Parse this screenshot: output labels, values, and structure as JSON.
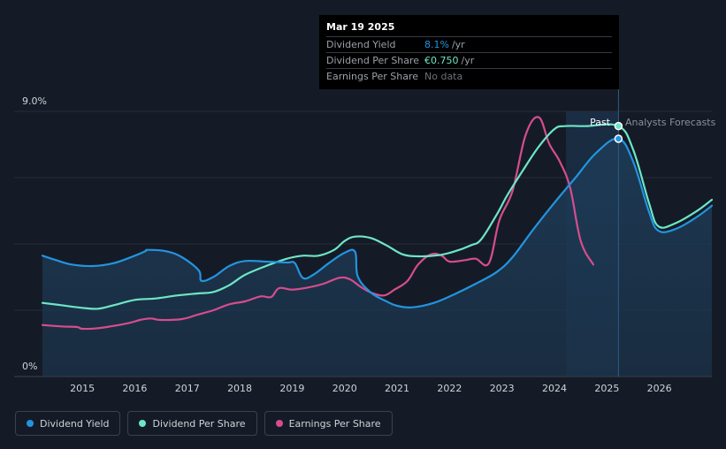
{
  "tooltip": {
    "date": "Mar 19 2025",
    "rows": [
      {
        "label": "Dividend Yield",
        "value": "8.1%",
        "unit": "/yr"
      },
      {
        "label": "Dividend Per Share",
        "value": "€0.750",
        "unit": "/yr"
      },
      {
        "label": "Earnings Per Share",
        "value": "No data",
        "unit": ""
      }
    ]
  },
  "legend": [
    {
      "label": "Dividend Yield",
      "color": "#2394df"
    },
    {
      "label": "Dividend Per Share",
      "color": "#6de6c6"
    },
    {
      "label": "Earnings Per Share",
      "color": "#d64d8e"
    }
  ],
  "colors": {
    "background": "#151b26",
    "grid": "#262c38",
    "forecast_band": "#1a2f47",
    "area_fill": "#1d3a55",
    "axis_text": "#cfd3d8",
    "muted_text": "#8a9099"
  },
  "chart_data": {
    "type": "line",
    "title": "",
    "y_axis_labels": [
      "9.0%",
      "0%"
    ],
    "ylim": [
      0,
      9.0
    ],
    "xlim": [
      2014.24,
      2027.0
    ],
    "x_ticks": [
      "2015",
      "2016",
      "2017",
      "2018",
      "2019",
      "2020",
      "2021",
      "2022",
      "2023",
      "2024",
      "2025",
      "2026"
    ],
    "x_tick_values": [
      2015,
      2016,
      2017,
      2018,
      2019,
      2020,
      2021,
      2022,
      2023,
      2024,
      2025,
      2026
    ],
    "past_label": "Past",
    "forecast_label": "Analysts Forecasts",
    "past_end_x": 2025.22,
    "forecast_band_start_x": 2024.22,
    "series": [
      {
        "name": "Dividend Yield",
        "color": "#2394df",
        "unit": "% yield",
        "filled": true,
        "points": [
          [
            2014.24,
            4.1
          ],
          [
            2014.5,
            3.95
          ],
          [
            2014.8,
            3.8
          ],
          [
            2015.2,
            3.75
          ],
          [
            2015.6,
            3.85
          ],
          [
            2016.0,
            4.1
          ],
          [
            2016.2,
            4.25
          ],
          [
            2016.25,
            4.3
          ],
          [
            2016.6,
            4.25
          ],
          [
            2016.9,
            4.05
          ],
          [
            2017.22,
            3.6
          ],
          [
            2017.27,
            3.25
          ],
          [
            2017.5,
            3.38
          ],
          [
            2017.8,
            3.75
          ],
          [
            2018.1,
            3.92
          ],
          [
            2018.5,
            3.9
          ],
          [
            2018.9,
            3.87
          ],
          [
            2019.05,
            3.85
          ],
          [
            2019.2,
            3.35
          ],
          [
            2019.4,
            3.45
          ],
          [
            2019.7,
            3.85
          ],
          [
            2020.0,
            4.2
          ],
          [
            2020.2,
            4.23
          ],
          [
            2020.25,
            3.4
          ],
          [
            2020.5,
            2.85
          ],
          [
            2020.8,
            2.55
          ],
          [
            2021.0,
            2.4
          ],
          [
            2021.3,
            2.35
          ],
          [
            2021.7,
            2.5
          ],
          [
            2022.1,
            2.8
          ],
          [
            2022.5,
            3.15
          ],
          [
            2022.9,
            3.55
          ],
          [
            2023.2,
            4.05
          ],
          [
            2023.6,
            5.0
          ],
          [
            2024.0,
            5.9
          ],
          [
            2024.4,
            6.75
          ],
          [
            2024.8,
            7.6
          ],
          [
            2025.22,
            8.07
          ],
          [
            2025.5,
            7.3
          ],
          [
            2025.8,
            5.6
          ],
          [
            2025.98,
            4.95
          ],
          [
            2026.3,
            5.0
          ],
          [
            2026.7,
            5.4
          ],
          [
            2027.0,
            5.8
          ]
        ]
      },
      {
        "name": "Dividend Per Share",
        "color": "#6de6c6",
        "unit": "€ per share (scaled)",
        "filled": false,
        "points": [
          [
            2014.24,
            2.5
          ],
          [
            2014.6,
            2.42
          ],
          [
            2015.0,
            2.33
          ],
          [
            2015.3,
            2.3
          ],
          [
            2015.6,
            2.42
          ],
          [
            2016.0,
            2.6
          ],
          [
            2016.4,
            2.65
          ],
          [
            2016.8,
            2.75
          ],
          [
            2017.2,
            2.82
          ],
          [
            2017.5,
            2.87
          ],
          [
            2017.8,
            3.1
          ],
          [
            2018.1,
            3.45
          ],
          [
            2018.5,
            3.75
          ],
          [
            2018.9,
            4.0
          ],
          [
            2019.2,
            4.1
          ],
          [
            2019.5,
            4.1
          ],
          [
            2019.8,
            4.3
          ],
          [
            2020.0,
            4.6
          ],
          [
            2020.2,
            4.75
          ],
          [
            2020.5,
            4.7
          ],
          [
            2020.8,
            4.45
          ],
          [
            2021.1,
            4.15
          ],
          [
            2021.4,
            4.08
          ],
          [
            2021.8,
            4.12
          ],
          [
            2022.1,
            4.25
          ],
          [
            2022.4,
            4.45
          ],
          [
            2022.6,
            4.65
          ],
          [
            2022.9,
            5.5
          ],
          [
            2023.1,
            6.15
          ],
          [
            2023.4,
            7.0
          ],
          [
            2023.7,
            7.8
          ],
          [
            2024.0,
            8.4
          ],
          [
            2024.2,
            8.5
          ],
          [
            2024.6,
            8.5
          ],
          [
            2025.22,
            8.5
          ],
          [
            2025.5,
            7.7
          ],
          [
            2025.8,
            5.9
          ],
          [
            2025.98,
            5.1
          ],
          [
            2026.3,
            5.2
          ],
          [
            2026.7,
            5.6
          ],
          [
            2027.0,
            6.0
          ]
        ]
      },
      {
        "name": "Earnings Per Share",
        "color": "#d64d8e",
        "unit": "€ per share (scaled)",
        "filled": false,
        "points": [
          [
            2014.24,
            1.75
          ],
          [
            2014.6,
            1.7
          ],
          [
            2014.9,
            1.68
          ],
          [
            2015.0,
            1.62
          ],
          [
            2015.3,
            1.64
          ],
          [
            2015.6,
            1.72
          ],
          [
            2015.9,
            1.82
          ],
          [
            2016.1,
            1.92
          ],
          [
            2016.3,
            1.97
          ],
          [
            2016.5,
            1.92
          ],
          [
            2016.9,
            1.95
          ],
          [
            2017.2,
            2.1
          ],
          [
            2017.5,
            2.25
          ],
          [
            2017.8,
            2.45
          ],
          [
            2018.1,
            2.55
          ],
          [
            2018.4,
            2.72
          ],
          [
            2018.6,
            2.7
          ],
          [
            2018.75,
            3.0
          ],
          [
            2019.0,
            2.95
          ],
          [
            2019.3,
            3.02
          ],
          [
            2019.6,
            3.15
          ],
          [
            2019.9,
            3.35
          ],
          [
            2020.1,
            3.3
          ],
          [
            2020.3,
            3.05
          ],
          [
            2020.5,
            2.85
          ],
          [
            2020.75,
            2.75
          ],
          [
            2020.95,
            2.95
          ],
          [
            2021.2,
            3.25
          ],
          [
            2021.4,
            3.8
          ],
          [
            2021.65,
            4.15
          ],
          [
            2021.85,
            4.1
          ],
          [
            2022.0,
            3.9
          ],
          [
            2022.3,
            3.95
          ],
          [
            2022.5,
            4.0
          ],
          [
            2022.75,
            3.85
          ],
          [
            2022.95,
            5.3
          ],
          [
            2023.2,
            6.3
          ],
          [
            2023.45,
            8.2
          ],
          [
            2023.7,
            8.8
          ],
          [
            2023.9,
            7.9
          ],
          [
            2024.1,
            7.3
          ],
          [
            2024.3,
            6.4
          ],
          [
            2024.5,
            4.6
          ],
          [
            2024.74,
            3.8
          ]
        ]
      }
    ],
    "markers": [
      {
        "series": "Dividend Per Share",
        "x": 2025.22,
        "y": 8.5
      },
      {
        "series": "Dividend Yield",
        "x": 2025.22,
        "y": 8.07
      }
    ]
  }
}
